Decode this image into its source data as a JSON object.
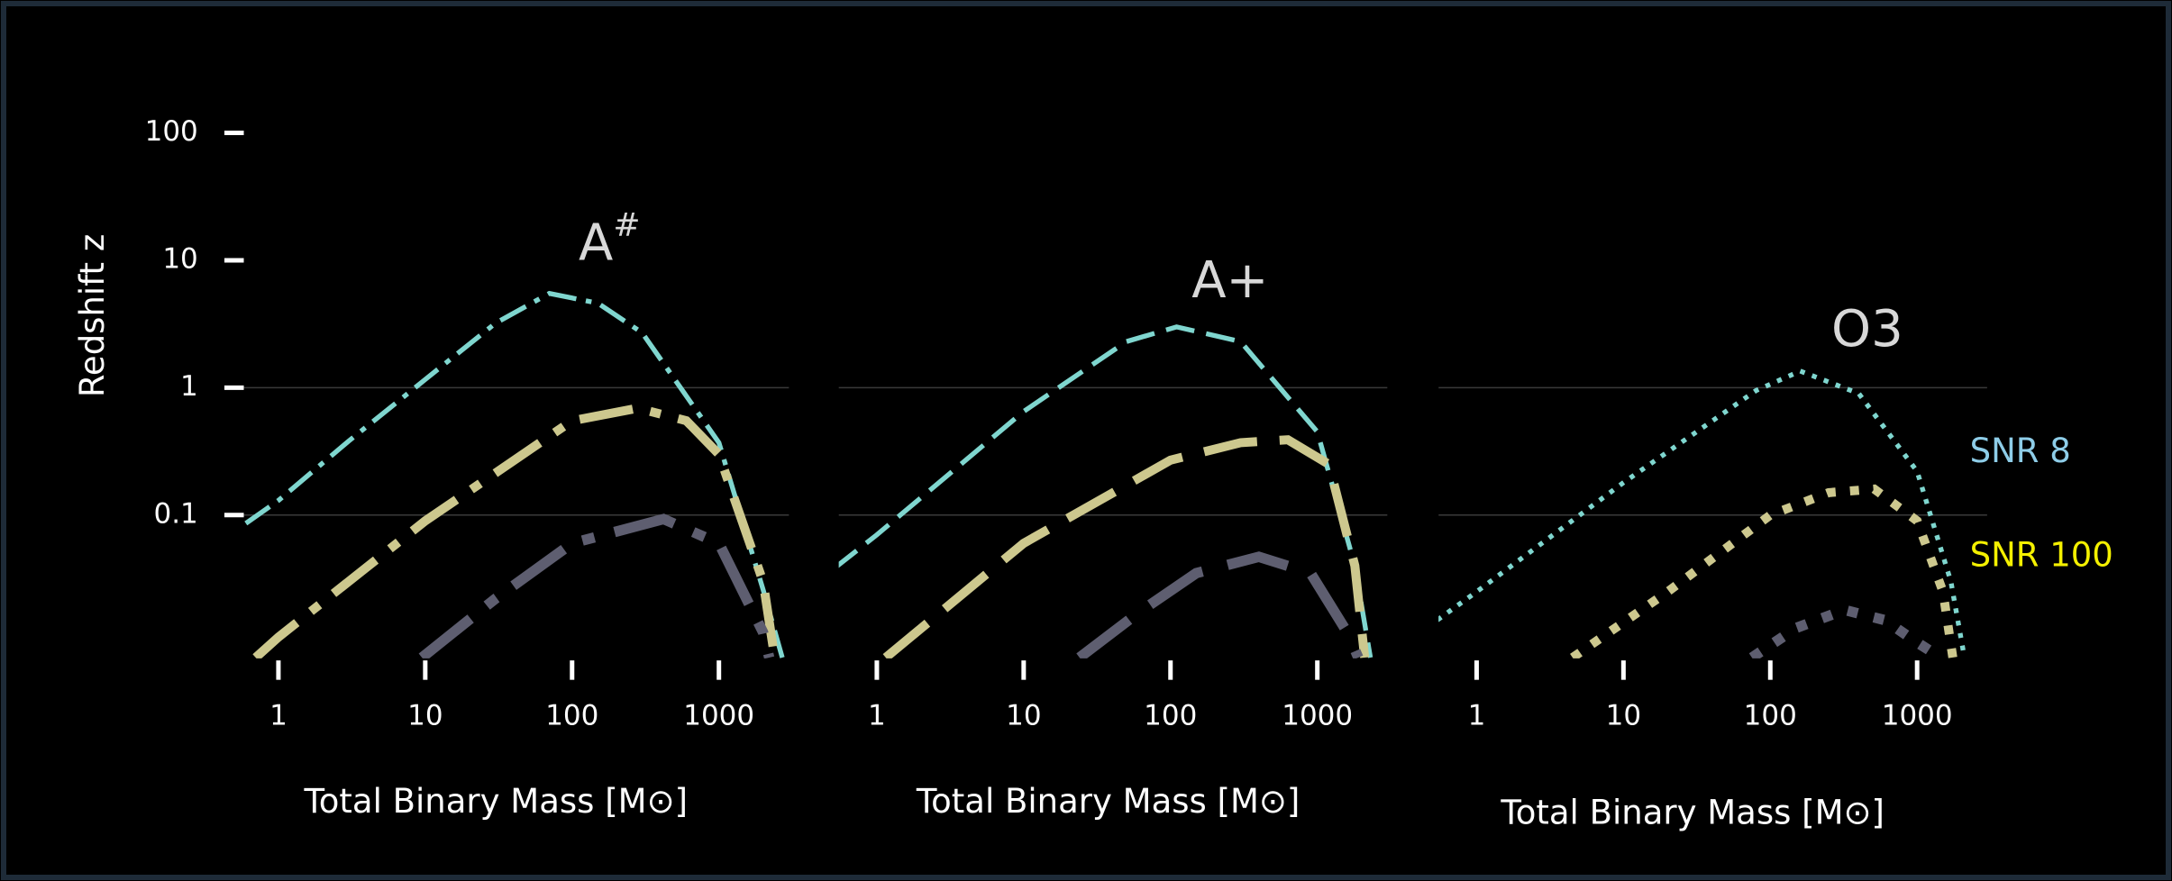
{
  "chart_data": [
    {
      "type": "line",
      "title": "A",
      "title_superscript": "#",
      "xlabel": "Total Binary Mass [M⊙]",
      "ylabel": "Redshift z",
      "xscale": "log",
      "yscale": "log",
      "line_style": "dashdot",
      "xlim": [
        0.55,
        3000
      ],
      "ylim": [
        0.0075,
        150
      ],
      "xticks": [
        1,
        10,
        100,
        1000
      ],
      "yticks": [
        0.1,
        1,
        10,
        100
      ],
      "hlines": [
        0.1,
        1
      ],
      "series": [
        {
          "color": "#7fd6cf",
          "x": [
            0.6,
            1,
            3,
            10,
            30,
            70,
            150,
            300,
            1000,
            2000,
            2700
          ],
          "values": [
            0.086,
            0.13,
            0.38,
            1.16,
            3.2,
            5.5,
            4.6,
            2.7,
            0.37,
            0.026,
            0.0076
          ]
        },
        {
          "color": "#cdc88e",
          "x": [
            0.7,
            1,
            10,
            100,
            280,
            600,
            1000,
            2000,
            2400
          ],
          "values": [
            0.0076,
            0.011,
            0.09,
            0.55,
            0.69,
            0.55,
            0.3,
            0.03,
            0.0076
          ]
        },
        {
          "color": "#5e5e70",
          "x": [
            9.5,
            30,
            100,
            420,
            1000,
            2000,
            2200
          ],
          "values": [
            0.0076,
            0.022,
            0.06,
            0.093,
            0.06,
            0.012,
            0.0076
          ]
        }
      ]
    },
    {
      "type": "line",
      "title": "A+",
      "xlabel": "Total Binary Mass [M⊙]",
      "xscale": "log",
      "yscale": "log",
      "line_style": "dashed",
      "xlim": [
        0.55,
        3000
      ],
      "ylim": [
        0.0075,
        150
      ],
      "xticks": [
        1,
        10,
        100,
        1000
      ],
      "hlines": [
        0.1,
        1
      ],
      "series": [
        {
          "color": "#7fd6cf",
          "x": [
            0.51,
            1,
            10,
            50,
            110,
            300,
            1000,
            1800,
            2300
          ],
          "values": [
            0.038,
            0.07,
            0.65,
            2.3,
            3.0,
            2.3,
            0.45,
            0.04,
            0.0076
          ]
        },
        {
          "color": "#cdc88e",
          "x": [
            1.15,
            10,
            100,
            300,
            630,
            1200,
            1800,
            2100
          ],
          "values": [
            0.0076,
            0.06,
            0.27,
            0.37,
            0.39,
            0.25,
            0.04,
            0.0076
          ]
        },
        {
          "color": "#5e5e70",
          "x": [
            24,
            60,
            150,
            400,
            900,
            1600,
            1900
          ],
          "values": [
            0.0076,
            0.017,
            0.035,
            0.047,
            0.035,
            0.012,
            0.0076
          ]
        }
      ]
    },
    {
      "type": "line",
      "title": "O3",
      "xlabel": "Total Binary Mass [M⊙]",
      "xscale": "log",
      "yscale": "log",
      "line_style": "dotted",
      "xlim": [
        0.55,
        3000
      ],
      "ylim": [
        0.0075,
        150
      ],
      "xticks": [
        1,
        10,
        100,
        1000
      ],
      "hlines": [
        0.1,
        1
      ],
      "series": [
        {
          "color": "#7fd6cf",
          "x": [
            0.54,
            1,
            10,
            80,
            160,
            400,
            1000,
            1700,
            2100
          ],
          "values": [
            0.015,
            0.025,
            0.18,
            0.95,
            1.35,
            0.9,
            0.22,
            0.03,
            0.0076
          ]
        },
        {
          "color": "#cdc88e",
          "x": [
            4.5,
            20,
            100,
            250,
            510,
            1000,
            1500,
            1750
          ],
          "values": [
            0.0076,
            0.025,
            0.1,
            0.15,
            0.16,
            0.09,
            0.025,
            0.0076
          ]
        },
        {
          "color": "#5e5e70",
          "x": [
            75,
            150,
            320,
            600,
            1000,
            1450
          ],
          "values": [
            0.0076,
            0.013,
            0.018,
            0.015,
            0.01,
            0.0076
          ]
        }
      ]
    }
  ],
  "legend": {
    "entries": [
      {
        "name": "SNR 8",
        "color": "#8ecde8"
      },
      {
        "name": "SNR 100",
        "color": "#f4f000"
      }
    ]
  }
}
